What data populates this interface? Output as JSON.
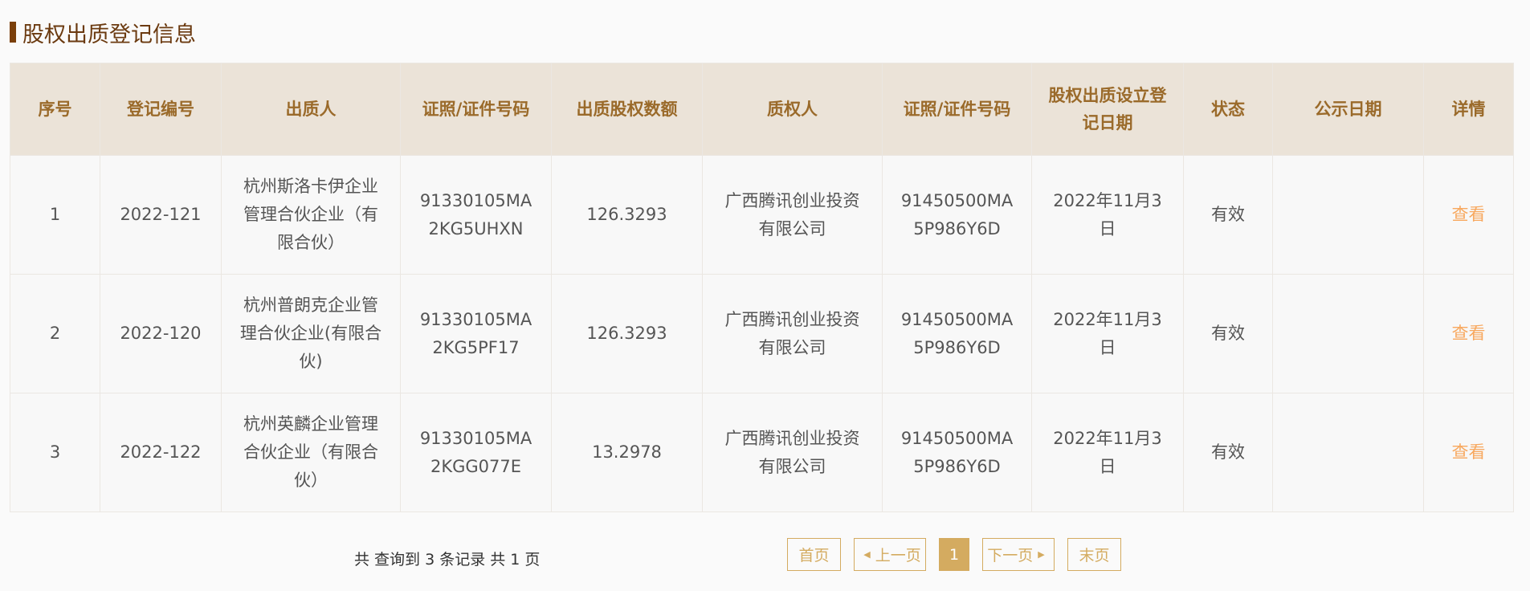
{
  "title": "股权出质登记信息",
  "headers": [
    "序号",
    "登记编号",
    "出质人",
    "证照/证件号码",
    "出质股权数额",
    "质权人",
    "证照/证件号码",
    "股权出质设立登记日期",
    "状态",
    "公示日期",
    "详情"
  ],
  "rows": [
    [
      "1",
      "2022-121",
      "杭州斯洛卡伊企业管理合伙企业（有限合伙）",
      "91330105MA2KG5UHXN",
      "126.3293",
      "广西腾讯创业投资有限公司",
      "91450500MA5P986Y6D",
      "2022年11月3日",
      "有效",
      "",
      "查看"
    ],
    [
      "2",
      "2022-120",
      "杭州普朗克企业管理合伙企业(有限合伙)",
      "91330105MA2KG5PF17",
      "126.3293",
      "广西腾讯创业投资有限公司",
      "91450500MA5P986Y6D",
      "2022年11月3日",
      "有效",
      "",
      "查看"
    ],
    [
      "3",
      "2022-122",
      "杭州英麟企业管理合伙企业（有限合伙）",
      "91330105MA2KGG077E",
      "13.2978",
      "广西腾讯创业投资有限公司",
      "91450500MA5P986Y6D",
      "2022年11月3日",
      "有效",
      "",
      "查看"
    ]
  ],
  "summary": "共 查询到 3 条记录 共 1 页",
  "pager": {
    "first": "首页",
    "prev": "上一页",
    "current": "1",
    "next": "下一页",
    "last": "末页"
  },
  "colors": {
    "accent": "#d4ab60",
    "link": "#f8a85e",
    "header_bg": "#ebe3d8",
    "title": "#6b3a10"
  }
}
